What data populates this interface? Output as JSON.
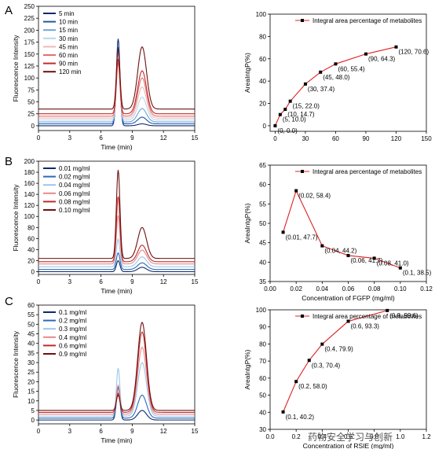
{
  "chart_data": [
    {
      "panel_label": "A",
      "type": "line",
      "xlabel": "Time (min)",
      "ylabel": "Fluorescence Intensity",
      "xlim": [
        0,
        15
      ],
      "ylim": [
        -10,
        250
      ],
      "xticks": [
        0,
        3,
        6,
        9,
        12,
        15
      ],
      "yticks": [
        0,
        25,
        50,
        75,
        100,
        125,
        150,
        175,
        200,
        225,
        250
      ],
      "legend_position": "top-left",
      "series": [
        {
          "name": "5 min",
          "color": "#0d2a6e",
          "baseline": 0,
          "peak1": 182,
          "peak2": 4
        },
        {
          "name": "10 min",
          "color": "#1f57a8",
          "baseline": 4,
          "peak1": 160,
          "peak2": 14
        },
        {
          "name": "15 min",
          "color": "#6aa6d8",
          "baseline": 8,
          "peak1": 145,
          "peak2": 28
        },
        {
          "name": "30 min",
          "color": "#b9d6ee",
          "baseline": 12,
          "peak1": 130,
          "peak2": 48
        },
        {
          "name": "45 min",
          "color": "#f0b8b8",
          "baseline": 16,
          "peak1": 118,
          "peak2": 65
        },
        {
          "name": "60 min",
          "color": "#e07070",
          "baseline": 20,
          "peak1": 112,
          "peak2": 80
        },
        {
          "name": "90 min",
          "color": "#c22a2a",
          "baseline": 25,
          "peak1": 115,
          "peak2": 90
        },
        {
          "name": "120 min",
          "color": "#6e1010",
          "baseline": 35,
          "peak1": 125,
          "peak2": 130
        }
      ]
    },
    {
      "panel_label": "",
      "type": "line",
      "xlabel": "",
      "ylabel": "AreaIntgP(%)",
      "xlim": [
        -5,
        150
      ],
      "ylim": [
        -5,
        100
      ],
      "xticks": [
        0,
        30,
        60,
        90,
        120,
        150
      ],
      "yticks": [
        0,
        20,
        40,
        60,
        80,
        100
      ],
      "legend": "Integral area percentage of metabolites",
      "legend_position": "top",
      "line_color": "#e02020",
      "points": [
        {
          "x": 0,
          "y": 0.0,
          "label": "(0, 0.0)"
        },
        {
          "x": 5,
          "y": 10.0,
          "label": "(5, 10.0)"
        },
        {
          "x": 10,
          "y": 14.7,
          "label": "(10, 14.7)"
        },
        {
          "x": 15,
          "y": 22.0,
          "label": "(15, 22.0)"
        },
        {
          "x": 30,
          "y": 37.4,
          "label": "(30, 37.4)"
        },
        {
          "x": 45,
          "y": 48.0,
          "label": "(45, 48.0)"
        },
        {
          "x": 60,
          "y": 55.4,
          "label": "(60, 55.4)"
        },
        {
          "x": 90,
          "y": 64.3,
          "label": "(90, 64.3)"
        },
        {
          "x": 120,
          "y": 70.6,
          "label": "(120, 70.6)"
        }
      ]
    },
    {
      "panel_label": "B",
      "type": "line",
      "xlabel": "Time (min)",
      "ylabel": "Fluorescence Intensity",
      "xlim": [
        0,
        15
      ],
      "ylim": [
        -5,
        200
      ],
      "xticks": [
        0,
        3,
        6,
        9,
        12,
        15
      ],
      "yticks": [
        0,
        20,
        40,
        60,
        80,
        100,
        120,
        140,
        160,
        180,
        200
      ],
      "legend_position": "top-left",
      "series": [
        {
          "name": "0.01 mg/ml",
          "color": "#0d2a6e",
          "baseline": 0,
          "peak1": 20,
          "peak2": 8
        },
        {
          "name": "0.02 mg/ml",
          "color": "#2a6bb8",
          "baseline": 4,
          "peak1": 30,
          "peak2": 12
        },
        {
          "name": "0.04 mg/ml",
          "color": "#9cc6e8",
          "baseline": 9,
          "peak1": 50,
          "peak2": 18
        },
        {
          "name": "0.06 mg/ml",
          "color": "#e58a8a",
          "baseline": 14,
          "peak1": 88,
          "peak2": 25
        },
        {
          "name": "0.08 mg/ml",
          "color": "#c22a2a",
          "baseline": 18,
          "peak1": 118,
          "peak2": 30
        },
        {
          "name": "0.10 mg/ml",
          "color": "#6e1010",
          "baseline": 24,
          "peak1": 160,
          "peak2": 56
        }
      ]
    },
    {
      "panel_label": "",
      "type": "line",
      "xlabel": "Concentration of FGFP (mg/ml)",
      "ylabel": "AreaIntgP(%)",
      "xlim": [
        0.0,
        0.12
      ],
      "ylim": [
        35,
        65
      ],
      "xticks": [
        0.0,
        0.02,
        0.04,
        0.06,
        0.08,
        0.1,
        0.12
      ],
      "xticklabels": [
        "0.00",
        "0.02",
        "0.04",
        "0.06",
        "0.08",
        "0.10",
        "0.12"
      ],
      "yticks": [
        35,
        40,
        45,
        50,
        55,
        60,
        65
      ],
      "legend": "Integral area percentage of metabolites",
      "legend_position": "top",
      "line_color": "#e02020",
      "points": [
        {
          "x": 0.01,
          "y": 47.7,
          "label": "(0.01, 47.7)"
        },
        {
          "x": 0.02,
          "y": 58.4,
          "label": "(0.02, 58.4)"
        },
        {
          "x": 0.04,
          "y": 44.2,
          "label": "(0.04, 44.2)"
        },
        {
          "x": 0.06,
          "y": 41.7,
          "label": "(0.06, 41.7)"
        },
        {
          "x": 0.08,
          "y": 41.0,
          "label": "(0.08, 41.0)"
        },
        {
          "x": 0.1,
          "y": 38.5,
          "label": "(0.1, 38.5)"
        }
      ]
    },
    {
      "panel_label": "C",
      "type": "line",
      "xlabel": "Time (min)",
      "ylabel": "Fluorescence Intensity",
      "xlim": [
        0,
        15
      ],
      "ylim": [
        -2,
        60
      ],
      "xticks": [
        0,
        3,
        6,
        9,
        12,
        15
      ],
      "yticks": [
        0,
        5,
        10,
        15,
        20,
        25,
        30,
        35,
        40,
        45,
        50,
        55,
        60
      ],
      "legend_position": "top-left",
      "series": [
        {
          "name": "0.1 mg/ml",
          "color": "#0d2a6e",
          "baseline": 0,
          "peak1": 17,
          "peak2": 5
        },
        {
          "name": "0.2 mg/ml",
          "color": "#2a6bb8",
          "baseline": 1,
          "peak1": 17,
          "peak2": 12
        },
        {
          "name": "0.3 mg/ml",
          "color": "#9cc6e8",
          "baseline": 2,
          "peak1": 25,
          "peak2": 28
        },
        {
          "name": "0.4 mg/ml",
          "color": "#e58a8a",
          "baseline": 3,
          "peak1": 15,
          "peak2": 35
        },
        {
          "name": "0.6 mg/ml",
          "color": "#c22a2a",
          "baseline": 4,
          "peak1": 10,
          "peak2": 42
        },
        {
          "name": "0.9 mg/ml",
          "color": "#6e1010",
          "baseline": 5,
          "peak1": 8,
          "peak2": 46
        }
      ]
    },
    {
      "panel_label": "",
      "type": "line",
      "xlabel": "Concentration of RSIE (mg/ml)",
      "ylabel": "AreaIntgP(%)",
      "xlim": [
        0.0,
        1.2
      ],
      "ylim": [
        30,
        100
      ],
      "xticks": [
        0.0,
        0.2,
        0.4,
        0.6,
        0.8,
        1.0,
        1.2
      ],
      "xticklabels": [
        "0.0",
        "0.2",
        "0.4",
        "0.6",
        "0.8",
        "1.0",
        "1.2"
      ],
      "yticks": [
        30,
        40,
        50,
        60,
        70,
        80,
        90,
        100
      ],
      "legend": "Integral area percentage of metabolites",
      "legend_position": "top",
      "line_color": "#e02020",
      "points": [
        {
          "x": 0.1,
          "y": 40.2,
          "label": "(0.1, 40.2)"
        },
        {
          "x": 0.2,
          "y": 58.0,
          "label": "(0.2, 58.0)"
        },
        {
          "x": 0.3,
          "y": 70.4,
          "label": "(0.3, 70.4)"
        },
        {
          "x": 0.4,
          "y": 79.9,
          "label": "(0.4, 79.9)"
        },
        {
          "x": 0.6,
          "y": 93.3,
          "label": "(0.6, 93.3)"
        },
        {
          "x": 0.9,
          "y": 99.6,
          "label": "(0.9, 99.6)"
        }
      ]
    }
  ],
  "watermark": "药物安全学习与创新"
}
